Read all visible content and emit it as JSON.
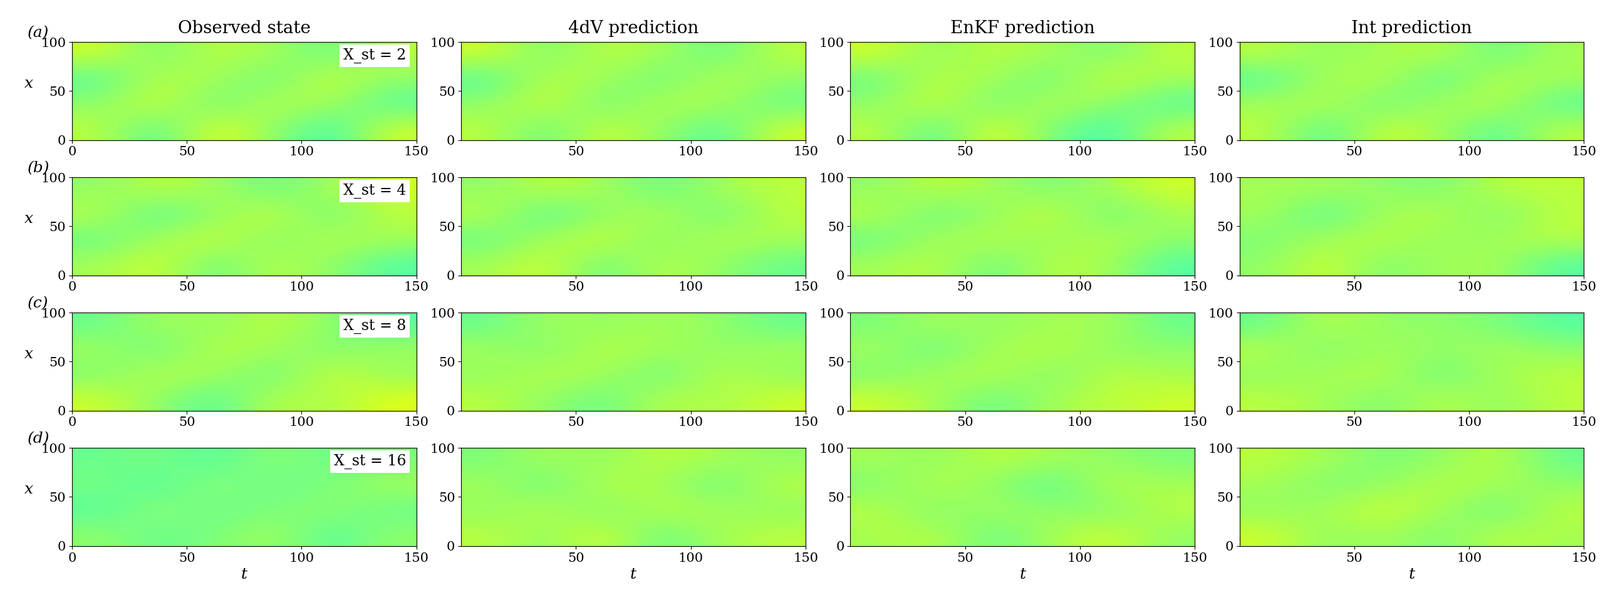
{
  "chart_data": [
    {
      "type": "heatmap",
      "title": "Observed state",
      "annotations": [
        "(a)",
        "X_st = 2"
      ],
      "ylabel": "x",
      "xlabel": null,
      "xlim": [
        0,
        150
      ],
      "ylim": [
        0,
        100
      ],
      "xticks": [
        0,
        50,
        100,
        150
      ],
      "yticks": [
        0,
        50,
        100
      ],
      "clim": [
        -2,
        2
      ],
      "cells": [
        [
          0.3,
          -0.2,
          0.5,
          0.1,
          -0.3,
          0.4
        ],
        [
          0.1,
          0.4,
          -0.1,
          0.3,
          0.2,
          -0.2
        ],
        [
          -0.2,
          0.3,
          0.2,
          -0.1,
          0.4,
          0.1
        ],
        [
          0.4,
          0.0,
          0.3,
          0.2,
          -0.1,
          0.3
        ]
      ]
    },
    {
      "type": "heatmap",
      "title": "4dV prediction",
      "annotations": [],
      "ylabel": null,
      "xlabel": null,
      "xlim": [
        0,
        150
      ],
      "ylim": [
        0,
        100
      ],
      "xticks": [
        50,
        100,
        150
      ],
      "yticks": [
        0,
        50,
        100
      ],
      "clim": [
        -2,
        2
      ],
      "cells": [
        [
          0.3,
          -0.1,
          0.4,
          0.1,
          -0.2,
          0.4
        ],
        [
          0.1,
          0.4,
          -0.1,
          0.3,
          0.2,
          -0.1
        ],
        [
          -0.2,
          0.3,
          0.2,
          -0.1,
          0.3,
          0.1
        ],
        [
          0.4,
          0.0,
          0.3,
          0.2,
          -0.1,
          0.3
        ]
      ]
    },
    {
      "type": "heatmap",
      "title": "EnKF prediction",
      "annotations": [],
      "ylabel": null,
      "xlabel": null,
      "xlim": [
        0,
        150
      ],
      "ylim": [
        0,
        100
      ],
      "xticks": [
        50,
        100,
        150
      ],
      "yticks": [
        0,
        50,
        100
      ],
      "clim": [
        -2,
        2
      ],
      "cells": [
        [
          0.3,
          -0.2,
          0.5,
          0.0,
          -0.3,
          0.3
        ],
        [
          0.1,
          0.4,
          -0.1,
          0.3,
          0.1,
          -0.2
        ],
        [
          -0.1,
          0.3,
          0.2,
          -0.1,
          0.4,
          0.2
        ],
        [
          0.4,
          0.1,
          0.3,
          0.2,
          0.0,
          0.3
        ]
      ]
    },
    {
      "type": "heatmap",
      "title": "Int prediction",
      "annotations": [],
      "ylabel": null,
      "xlabel": null,
      "xlim": [
        0,
        150
      ],
      "ylim": [
        0,
        100
      ],
      "xticks": [
        50,
        100,
        150
      ],
      "yticks": [
        0,
        50,
        100
      ],
      "clim": [
        -2,
        2
      ],
      "cells": [
        [
          0.3,
          -0.2,
          0.4,
          0.2,
          -0.2,
          0.3
        ],
        [
          0.2,
          0.3,
          -0.1,
          0.2,
          0.3,
          -0.2
        ],
        [
          -0.2,
          0.2,
          0.3,
          -0.2,
          0.3,
          0.2
        ],
        [
          0.3,
          0.1,
          0.2,
          0.3,
          -0.1,
          0.2
        ]
      ]
    },
    {
      "type": "heatmap",
      "title": null,
      "annotations": [
        "(b)",
        "X_st = 4"
      ],
      "ylabel": "x",
      "xlabel": null,
      "xlim": [
        0,
        150
      ],
      "ylim": [
        0,
        100
      ],
      "xticks": [
        0,
        50,
        100,
        150
      ],
      "yticks": [
        0,
        50,
        100
      ],
      "clim": [
        -2,
        2
      ],
      "cells": [
        [
          0.2,
          0.4,
          -0.1,
          0.3,
          0.1,
          -0.2
        ],
        [
          -0.1,
          0.2,
          0.4,
          0.0,
          0.3,
          0.2
        ],
        [
          0.3,
          -0.2,
          0.1,
          0.4,
          -0.1,
          0.3
        ],
        [
          0.1,
          0.3,
          0.2,
          -0.1,
          0.2,
          0.4
        ]
      ]
    },
    {
      "type": "heatmap",
      "title": null,
      "annotations": [],
      "ylabel": null,
      "xlabel": null,
      "xlim": [
        0,
        150
      ],
      "ylim": [
        0,
        100
      ],
      "xticks": [
        50,
        100,
        150
      ],
      "yticks": [
        0,
        50,
        100
      ],
      "clim": [
        -2,
        2
      ],
      "cells": [
        [
          0.2,
          0.4,
          -0.1,
          0.3,
          0.1,
          -0.1
        ],
        [
          -0.1,
          0.2,
          0.4,
          0.0,
          0.3,
          0.2
        ],
        [
          0.3,
          -0.2,
          0.1,
          0.3,
          -0.1,
          0.3
        ],
        [
          0.1,
          0.3,
          0.2,
          -0.1,
          0.2,
          0.3
        ]
      ]
    },
    {
      "type": "heatmap",
      "title": null,
      "annotations": [],
      "ylabel": null,
      "xlabel": null,
      "xlim": [
        0,
        150
      ],
      "ylim": [
        0,
        100
      ],
      "xticks": [
        50,
        100,
        150
      ],
      "yticks": [
        0,
        50,
        100
      ],
      "clim": [
        -2,
        2
      ],
      "cells": [
        [
          0.2,
          0.3,
          -0.1,
          0.3,
          0.2,
          -0.2
        ],
        [
          -0.1,
          0.2,
          0.3,
          0.1,
          0.3,
          0.1
        ],
        [
          0.3,
          -0.1,
          0.1,
          0.4,
          -0.1,
          0.2
        ],
        [
          0.1,
          0.3,
          0.2,
          0.0,
          0.2,
          0.4
        ]
      ]
    },
    {
      "type": "heatmap",
      "title": null,
      "annotations": [],
      "ylabel": null,
      "xlabel": null,
      "xlim": [
        0,
        150
      ],
      "ylim": [
        0,
        100
      ],
      "xticks": [
        50,
        100,
        150
      ],
      "yticks": [
        0,
        50,
        100
      ],
      "clim": [
        -2,
        2
      ],
      "cells": [
        [
          0.1,
          0.4,
          0.0,
          0.2,
          0.2,
          -0.2
        ],
        [
          0.0,
          0.2,
          0.3,
          0.1,
          0.2,
          0.3
        ],
        [
          0.2,
          -0.2,
          0.2,
          0.3,
          0.0,
          0.3
        ],
        [
          0.2,
          0.2,
          0.1,
          0.0,
          0.3,
          0.3
        ]
      ]
    },
    {
      "type": "heatmap",
      "title": null,
      "annotations": [
        "(c)",
        "X_st = 8"
      ],
      "ylabel": "x",
      "xlabel": null,
      "xlim": [
        0,
        150
      ],
      "ylim": [
        0,
        100
      ],
      "xticks": [
        0,
        50,
        100,
        150
      ],
      "yticks": [
        0,
        50,
        100
      ],
      "clim": [
        -2,
        2
      ],
      "cells": [
        [
          0.4,
          0.1,
          -0.2,
          0.3,
          0.2,
          0.5
        ],
        [
          0.0,
          0.3,
          0.2,
          -0.1,
          0.4,
          0.1
        ],
        [
          0.2,
          -0.1,
          0.3,
          0.2,
          0.0,
          0.2
        ],
        [
          -0.1,
          0.2,
          0.1,
          0.3,
          0.1,
          -0.2
        ]
      ]
    },
    {
      "type": "heatmap",
      "title": null,
      "annotations": [],
      "ylabel": null,
      "xlabel": null,
      "xlim": [
        0,
        150
      ],
      "ylim": [
        0,
        100
      ],
      "xticks": [
        50,
        100,
        150
      ],
      "yticks": [
        0,
        50,
        100
      ],
      "clim": [
        -2,
        2
      ],
      "cells": [
        [
          0.3,
          0.1,
          -0.1,
          0.3,
          0.2,
          0.4
        ],
        [
          0.1,
          0.3,
          0.2,
          -0.1,
          0.3,
          0.1
        ],
        [
          0.2,
          0.0,
          0.3,
          0.2,
          0.1,
          0.2
        ],
        [
          -0.1,
          0.2,
          0.1,
          0.2,
          0.1,
          -0.1
        ]
      ]
    },
    {
      "type": "heatmap",
      "title": null,
      "annotations": [],
      "ylabel": null,
      "xlabel": null,
      "xlim": [
        0,
        150
      ],
      "ylim": [
        0,
        100
      ],
      "xticks": [
        50,
        100,
        150
      ],
      "yticks": [
        0,
        50,
        100
      ],
      "clim": [
        -2,
        2
      ],
      "cells": [
        [
          0.4,
          0.2,
          -0.1,
          0.2,
          0.3,
          0.4
        ],
        [
          0.0,
          0.2,
          0.3,
          0.0,
          0.3,
          0.2
        ],
        [
          0.2,
          -0.1,
          0.2,
          0.3,
          0.1,
          0.1
        ],
        [
          0.0,
          0.2,
          0.1,
          0.2,
          0.2,
          -0.1
        ]
      ]
    },
    {
      "type": "heatmap",
      "title": null,
      "annotations": [],
      "ylabel": null,
      "xlabel": null,
      "xlim": [
        0,
        150
      ],
      "ylim": [
        0,
        100
      ],
      "xticks": [
        50,
        100,
        150
      ],
      "yticks": [
        0,
        50,
        100
      ],
      "clim": [
        -2,
        2
      ],
      "cells": [
        [
          0.3,
          0.2,
          0.0,
          0.3,
          0.1,
          0.3
        ],
        [
          0.1,
          0.2,
          0.3,
          -0.1,
          0.2,
          0.3
        ],
        [
          0.3,
          0.0,
          0.2,
          0.1,
          0.2,
          0.1
        ],
        [
          -0.1,
          0.3,
          0.1,
          0.1,
          0.0,
          -0.2
        ]
      ]
    },
    {
      "type": "heatmap",
      "title": null,
      "annotations": [
        "(d)",
        "X_st = 16"
      ],
      "ylabel": "x",
      "xlabel": "t",
      "xlim": [
        0,
        150
      ],
      "ylim": [
        0,
        100
      ],
      "xticks": [
        0,
        50,
        100,
        150
      ],
      "yticks": [
        0,
        50,
        100
      ],
      "clim": [
        -2,
        2
      ],
      "cells": [
        [
          0.1,
          -0.1,
          0.0,
          0.2,
          -0.2,
          0.1
        ],
        [
          -0.2,
          0.1,
          -0.1,
          0.0,
          0.1,
          -0.1
        ],
        [
          0.0,
          -0.2,
          0.1,
          -0.1,
          0.0,
          0.2
        ],
        [
          -0.1,
          0.0,
          -0.2,
          0.1,
          -0.1,
          0.0
        ]
      ]
    },
    {
      "type": "heatmap",
      "title": null,
      "annotations": [],
      "ylabel": null,
      "xlabel": "t",
      "xlim": [
        0,
        150
      ],
      "ylim": [
        0,
        100
      ],
      "xticks": [
        50,
        100,
        150
      ],
      "yticks": [
        0,
        50,
        100
      ],
      "clim": [
        -2,
        2
      ],
      "cells": [
        [
          0.3,
          0.1,
          0.4,
          -0.1,
          0.2,
          0.3
        ],
        [
          0.1,
          0.3,
          0.0,
          0.3,
          0.2,
          0.1
        ],
        [
          0.2,
          -0.1,
          0.3,
          0.2,
          -0.1,
          0.3
        ],
        [
          0.0,
          0.2,
          0.1,
          0.3,
          0.2,
          0.1
        ]
      ]
    },
    {
      "type": "heatmap",
      "title": null,
      "annotations": [],
      "ylabel": null,
      "xlabel": "t",
      "xlim": [
        0,
        150
      ],
      "ylim": [
        0,
        100
      ],
      "xticks": [
        50,
        100,
        150
      ],
      "yticks": [
        0,
        50,
        100
      ],
      "clim": [
        -2,
        2
      ],
      "cells": [
        [
          0.2,
          0.3,
          -0.1,
          0.2,
          0.4,
          0.1
        ],
        [
          0.3,
          0.0,
          0.2,
          0.1,
          0.0,
          0.3
        ],
        [
          0.0,
          0.3,
          0.1,
          -0.2,
          0.3,
          0.2
        ],
        [
          0.2,
          0.1,
          0.3,
          0.2,
          0.1,
          0.0
        ]
      ]
    },
    {
      "type": "heatmap",
      "title": null,
      "annotations": [],
      "ylabel": null,
      "xlabel": "t",
      "xlim": [
        0,
        150
      ],
      "ylim": [
        0,
        100
      ],
      "xticks": [
        50,
        100,
        150
      ],
      "yticks": [
        0,
        50,
        100
      ],
      "clim": [
        -2,
        2
      ],
      "cells": [
        [
          0.4,
          0.1,
          0.2,
          0.0,
          0.3,
          0.2
        ],
        [
          0.1,
          0.2,
          0.4,
          0.2,
          -0.1,
          0.3
        ],
        [
          0.2,
          0.0,
          0.1,
          0.3,
          0.2,
          0.1
        ],
        [
          0.3,
          0.2,
          0.0,
          0.1,
          0.3,
          -0.1
        ]
      ]
    }
  ]
}
